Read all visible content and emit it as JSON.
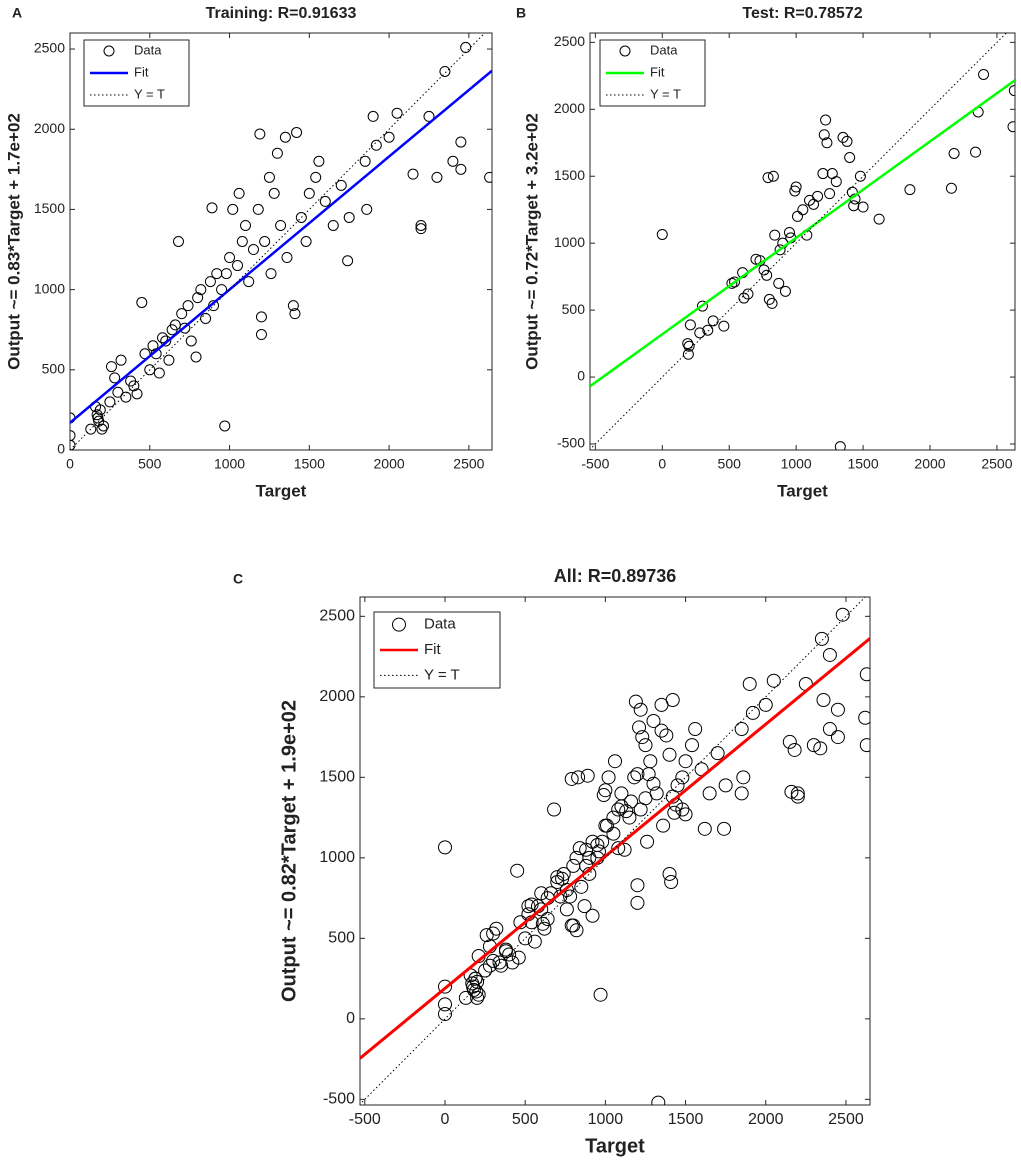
{
  "chart_data": [
    {
      "type": "scatter",
      "panel": "A",
      "title": "Training: R=0.91633",
      "x_label": "Target",
      "y_label": "Output ~= 0.83*Target + 1.7e+02",
      "xlim": [
        0,
        2645
      ],
      "ylim": [
        0,
        2600
      ],
      "xticks": [
        0,
        500,
        1000,
        1500,
        2000,
        2500
      ],
      "yticks": [
        0,
        500,
        1000,
        1500,
        2000,
        2500
      ],
      "grid": false,
      "legend": "upper left",
      "series": [
        {
          "name": "Data",
          "color": "#000000",
          "x": [
            0,
            0,
            0,
            160,
            170,
            180,
            190,
            175,
            200,
            210,
            130,
            250,
            260,
            280,
            300,
            320,
            350,
            380,
            400,
            420,
            450,
            470,
            500,
            520,
            540,
            560,
            580,
            600,
            620,
            640,
            660,
            680,
            700,
            720,
            740,
            760,
            790,
            800,
            820,
            850,
            880,
            890,
            900,
            920,
            950,
            970,
            980,
            1000,
            1020,
            1050,
            1060,
            1080,
            1100,
            1120,
            1150,
            1180,
            1190,
            1200,
            1200,
            1220,
            1250,
            1260,
            1280,
            1300,
            1320,
            1350,
            1360,
            1400,
            1410,
            1420,
            1450,
            1480,
            1500,
            1540,
            1560,
            1600,
            1650,
            1700,
            1740,
            1750,
            1850,
            1860,
            1900,
            1920,
            2000,
            2050,
            2150,
            2200,
            2200,
            2250,
            2300,
            2350,
            2400,
            2450,
            2480,
            2450,
            2630
          ],
          "y": [
            30,
            90,
            200,
            270,
            220,
            180,
            250,
            200,
            130,
            150,
            130,
            300,
            520,
            450,
            360,
            560,
            330,
            430,
            400,
            350,
            920,
            600,
            500,
            650,
            600,
            480,
            700,
            680,
            560,
            750,
            780,
            1300,
            850,
            760,
            900,
            680,
            580,
            950,
            1000,
            820,
            1050,
            1510,
            900,
            1100,
            1000,
            150,
            1100,
            1200,
            1500,
            1150,
            1600,
            1300,
            1400,
            1050,
            1250,
            1500,
            1970,
            720,
            830,
            1300,
            1700,
            1100,
            1600,
            1850,
            1400,
            1950,
            1200,
            900,
            850,
            1980,
            1450,
            1300,
            1600,
            1700,
            1800,
            1550,
            1400,
            1650,
            1180,
            1450,
            1800,
            1500,
            2080,
            1900,
            1950,
            2100,
            1720,
            1400,
            1380,
            2080,
            1700,
            2360,
            1800,
            1920,
            2510,
            1750,
            1700
          ]
        },
        {
          "name": "Fit",
          "color": "#0000ff",
          "x": [
            0,
            2645
          ],
          "y": [
            170,
            2365
          ]
        },
        {
          "name": "Y = T",
          "color": "#000000",
          "x": [
            0,
            2600
          ],
          "y": [
            0,
            2600
          ]
        }
      ]
    },
    {
      "type": "scatter",
      "panel": "B",
      "title": "Test: R=0.78572",
      "x_label": "Target",
      "y_label": "Output ~= 0.72*Target + 3.2e+02",
      "xlim": [
        -540,
        2635
      ],
      "ylim": [
        -545,
        2570
      ],
      "xticks": [
        -500,
        0,
        500,
        1000,
        1500,
        2000,
        2500
      ],
      "yticks": [
        -500,
        0,
        500,
        1000,
        1500,
        2000,
        2500
      ],
      "grid": false,
      "legend": "upper left",
      "series": [
        {
          "name": "Data",
          "color": "#000000",
          "x": [
            0,
            190,
            200,
            195,
            210,
            280,
            300,
            340,
            380,
            460,
            520,
            540,
            600,
            610,
            640,
            700,
            730,
            760,
            780,
            790,
            800,
            820,
            830,
            840,
            870,
            880,
            900,
            920,
            950,
            960,
            990,
            1000,
            1010,
            1050,
            1080,
            1100,
            1130,
            1160,
            1200,
            1210,
            1220,
            1230,
            1250,
            1270,
            1300,
            1330,
            1350,
            1380,
            1400,
            1420,
            1430,
            1440,
            1480,
            1500,
            1620,
            1850,
            2160,
            2180,
            2340,
            2360,
            2400,
            2630,
            2620
          ],
          "y": [
            1065,
            250,
            230,
            170,
            390,
            330,
            530,
            350,
            420,
            380,
            700,
            710,
            780,
            590,
            620,
            880,
            870,
            800,
            760,
            1490,
            580,
            550,
            1500,
            1060,
            700,
            950,
            1000,
            640,
            1080,
            1040,
            1390,
            1420,
            1200,
            1250,
            1060,
            1320,
            1290,
            1350,
            1520,
            1810,
            1920,
            1750,
            1370,
            1520,
            1460,
            -520,
            1790,
            1760,
            1640,
            1380,
            1280,
            1330,
            1500,
            1270,
            1180,
            1400,
            1410,
            1670,
            1680,
            1980,
            2260,
            2140,
            1870
          ]
        },
        {
          "name": "Fit",
          "color": "#00ff00",
          "x": [
            -540,
            2635
          ],
          "y": [
            -69,
            2217
          ]
        },
        {
          "name": "Y = T",
          "color": "#000000",
          "x": [
            -545,
            2570
          ],
          "y": [
            -545,
            2570
          ]
        }
      ]
    },
    {
      "type": "scatter",
      "panel": "C",
      "title": "All: R=0.89736",
      "x_label": "Target",
      "y_label": "Output ~= 0.82*Target + 1.9e+02",
      "xlim": [
        -530,
        2650
      ],
      "ylim": [
        -535,
        2620
      ],
      "xticks": [
        -500,
        0,
        500,
        1000,
        1500,
        2000,
        2500
      ],
      "yticks": [
        -500,
        0,
        500,
        1000,
        1500,
        2000,
        2500
      ],
      "grid": false,
      "legend": "upper left",
      "series": [
        {
          "name": "Data",
          "color": "#000000",
          "x": [
            0,
            0,
            0,
            160,
            170,
            180,
            190,
            175,
            200,
            210,
            130,
            250,
            260,
            280,
            300,
            320,
            350,
            380,
            400,
            420,
            450,
            470,
            500,
            520,
            540,
            560,
            580,
            600,
            620,
            640,
            660,
            680,
            700,
            720,
            740,
            760,
            790,
            800,
            820,
            850,
            880,
            890,
            900,
            920,
            950,
            970,
            980,
            1000,
            1020,
            1050,
            1060,
            1080,
            1100,
            1120,
            1150,
            1180,
            1190,
            1200,
            1200,
            1220,
            1250,
            1260,
            1280,
            1300,
            1320,
            1350,
            1360,
            1400,
            1410,
            1420,
            1450,
            1480,
            1500,
            1540,
            1560,
            1600,
            1650,
            1700,
            1740,
            1750,
            1850,
            1860,
            1900,
            1920,
            2000,
            2050,
            2150,
            2200,
            2200,
            2250,
            2300,
            2350,
            2400,
            2450,
            2480,
            2450,
            2630,
            0,
            190,
            200,
            195,
            210,
            280,
            300,
            340,
            380,
            460,
            520,
            540,
            600,
            610,
            640,
            700,
            730,
            760,
            780,
            790,
            800,
            820,
            830,
            840,
            870,
            880,
            900,
            920,
            950,
            960,
            990,
            1000,
            1010,
            1050,
            1080,
            1100,
            1130,
            1160,
            1200,
            1210,
            1220,
            1230,
            1250,
            1270,
            1300,
            1330,
            1350,
            1380,
            1400,
            1420,
            1430,
            1440,
            1480,
            1500,
            1620,
            1850,
            2160,
            2180,
            2340,
            2360,
            2400,
            2630,
            2620
          ],
          "y": [
            30,
            90,
            200,
            270,
            220,
            180,
            250,
            200,
            130,
            150,
            130,
            300,
            520,
            450,
            360,
            560,
            330,
            430,
            400,
            350,
            920,
            600,
            500,
            650,
            600,
            480,
            700,
            680,
            560,
            750,
            780,
            1300,
            850,
            760,
            900,
            680,
            580,
            950,
            1000,
            820,
            1050,
            1510,
            900,
            1100,
            1000,
            150,
            1100,
            1200,
            1500,
            1150,
            1600,
            1300,
            1400,
            1050,
            1250,
            1500,
            1970,
            720,
            830,
            1300,
            1700,
            1100,
            1600,
            1850,
            1400,
            1950,
            1200,
            900,
            850,
            1980,
            1450,
            1300,
            1600,
            1700,
            1800,
            1550,
            1400,
            1650,
            1180,
            1450,
            1800,
            1500,
            2080,
            1900,
            1950,
            2100,
            1720,
            1400,
            1380,
            2080,
            1700,
            2360,
            1800,
            1920,
            2510,
            1750,
            1700,
            1065,
            250,
            230,
            170,
            390,
            330,
            530,
            350,
            420,
            380,
            700,
            710,
            780,
            590,
            620,
            880,
            870,
            800,
            760,
            1490,
            580,
            550,
            1500,
            1060,
            700,
            950,
            1000,
            640,
            1080,
            1040,
            1390,
            1420,
            1200,
            1250,
            1060,
            1320,
            1290,
            1350,
            1520,
            1810,
            1920,
            1750,
            1370,
            1520,
            1460,
            -520,
            1790,
            1760,
            1640,
            1380,
            1280,
            1330,
            1500,
            1270,
            1180,
            1400,
            1410,
            1670,
            1680,
            1980,
            2260,
            2140,
            1870
          ]
        },
        {
          "name": "Fit",
          "color": "#ff0000",
          "x": [
            -530,
            2650
          ],
          "y": [
            -245,
            2363
          ]
        },
        {
          "name": "Y = T",
          "color": "#000000",
          "x": [
            -535,
            2620
          ],
          "y": [
            -535,
            2620
          ]
        }
      ]
    }
  ]
}
